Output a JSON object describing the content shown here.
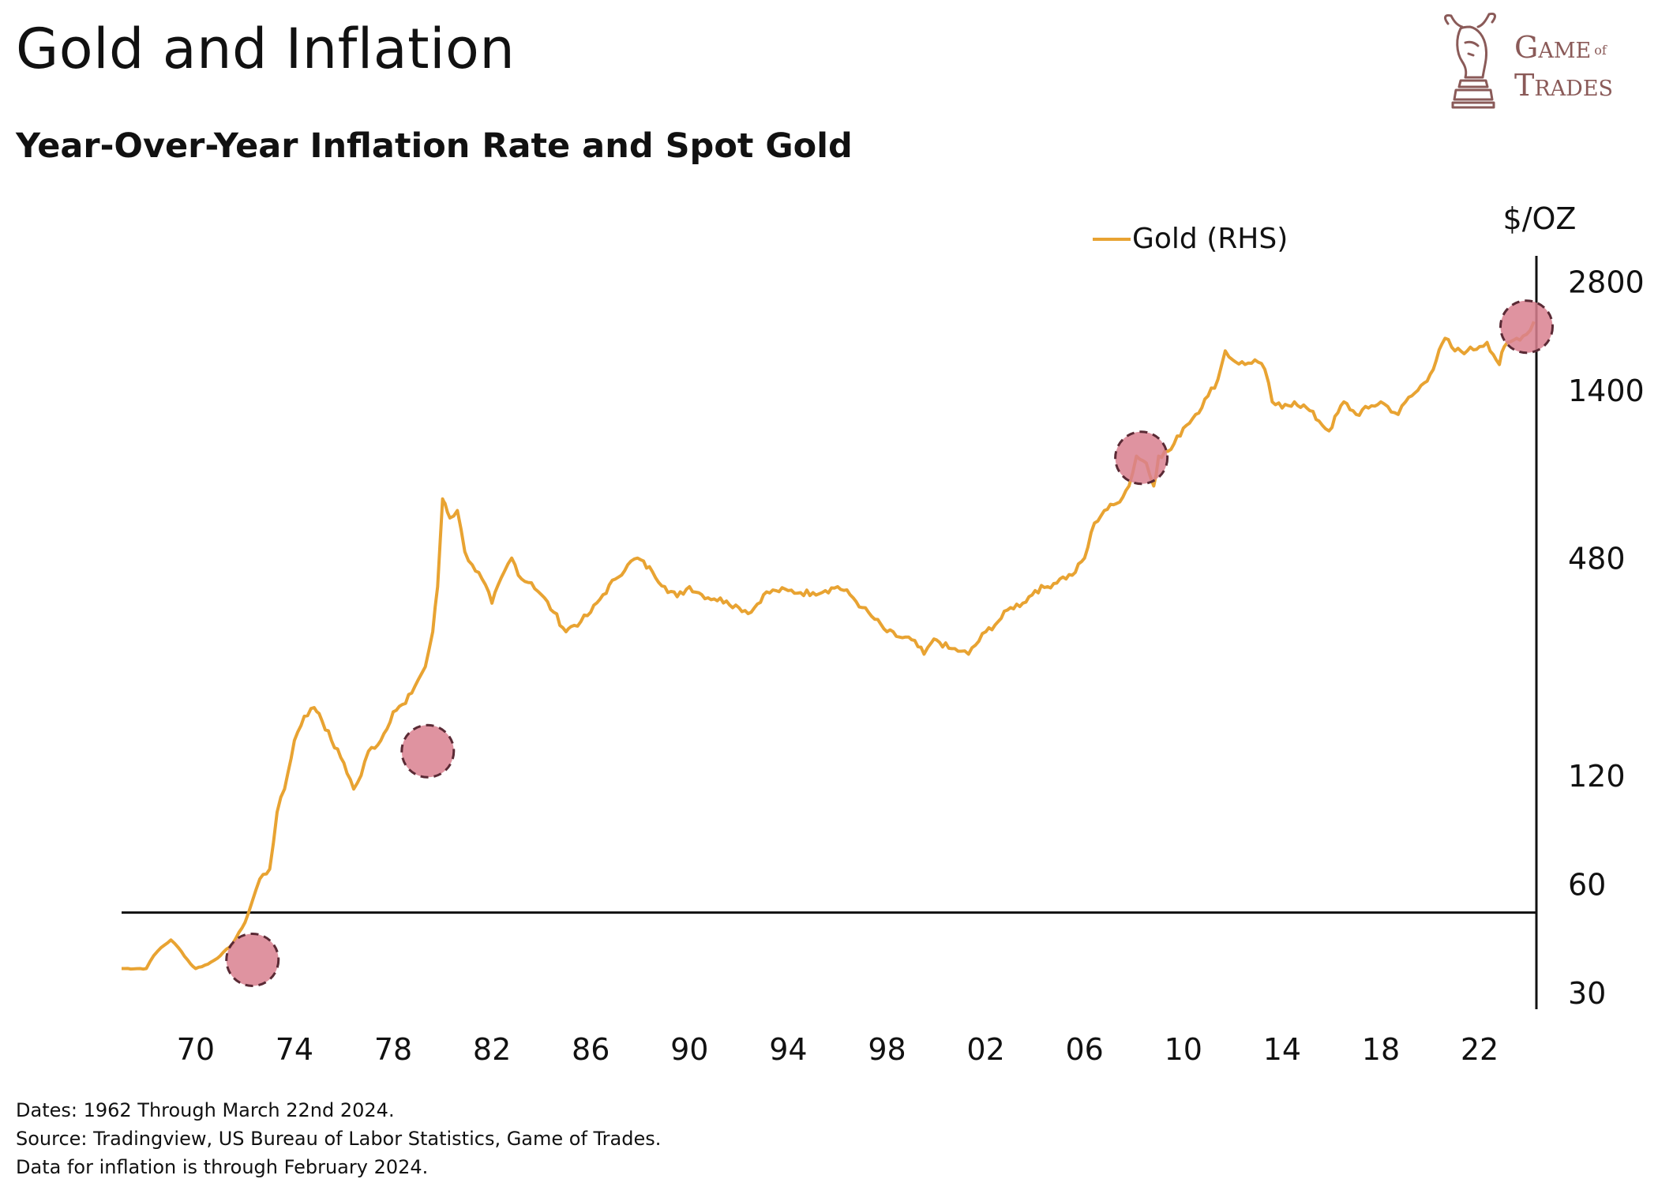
{
  "header": {
    "title": "Gold and Inflation",
    "subtitle": "Year-Over-Year Inflation Rate and Spot Gold"
  },
  "logo": {
    "line1": "Game",
    "line1_small": "of",
    "line2": "Trades",
    "icon": "bull-chess-knight-icon",
    "color": "#8a5a58"
  },
  "footer": {
    "dates": "Dates: 1962 Through March 22nd 2024.",
    "source": "Source: Tradingview, US Bureau of Labor Statistics, Game of Trades.",
    "note": "Data for inflation is through February 2024."
  },
  "chart_data": {
    "type": "line",
    "title": "Gold and Inflation",
    "subtitle": "Year-Over-Year Inflation Rate and Spot Gold",
    "y_unit_label": "$/OZ",
    "y_scale": "log",
    "y_ticks": [
      30,
      60,
      120,
      480,
      1400,
      2800
    ],
    "x_ticks": [
      "70",
      "74",
      "78",
      "82",
      "86",
      "90",
      "94",
      "98",
      "02",
      "06",
      "10",
      "14",
      "18",
      "22"
    ],
    "xlim": [
      1967,
      2024.3
    ],
    "ylim": [
      27,
      3300
    ],
    "legend": {
      "position": "top-right",
      "entries": [
        "Gold (RHS)"
      ]
    },
    "grid": false,
    "colors": {
      "gold": "#E8A332",
      "highlight_fill": "#D9808F",
      "highlight_stroke": "#5A2A35"
    },
    "series": [
      {
        "name": "Gold (RHS)",
        "x": [
          1967.0,
          1968.0,
          1968.3,
          1968.6,
          1969.0,
          1969.3,
          1969.8,
          1970.0,
          1970.5,
          1971.0,
          1971.5,
          1972.0,
          1972.3,
          1972.6,
          1973.0,
          1973.3,
          1973.6,
          1974.0,
          1974.4,
          1974.8,
          1975.0,
          1975.5,
          1976.0,
          1976.4,
          1976.7,
          1977.0,
          1977.5,
          1978.0,
          1978.5,
          1979.0,
          1979.3,
          1979.6,
          1979.8,
          1980.0,
          1980.1,
          1980.3,
          1980.6,
          1980.9,
          1981.2,
          1981.6,
          1982.0,
          1982.5,
          1982.8,
          1983.2,
          1983.6,
          1984.0,
          1984.5,
          1985.0,
          1985.2,
          1985.6,
          1986.0,
          1986.5,
          1987.0,
          1987.5,
          1987.9,
          1988.5,
          1989.0,
          1989.5,
          1990.0,
          1990.5,
          1991.0,
          1991.5,
          1992.0,
          1992.5,
          1993.0,
          1993.5,
          1994.0,
          1994.5,
          1995.0,
          1995.5,
          1996.0,
          1996.5,
          1997.0,
          1997.5,
          1998.0,
          1998.5,
          1999.0,
          1999.5,
          1999.8,
          2000.0,
          2000.5,
          2001.0,
          2001.3,
          2002.0,
          2002.5,
          2003.0,
          2003.5,
          2004.0,
          2004.5,
          2005.0,
          2005.5,
          2006.0,
          2006.4,
          2006.8,
          2007.3,
          2007.8,
          2008.1,
          2008.5,
          2008.8,
          2009.0,
          2009.5,
          2010.0,
          2010.5,
          2011.0,
          2011.4,
          2011.7,
          2012.0,
          2012.5,
          2012.9,
          2013.3,
          2013.6,
          2014.0,
          2014.5,
          2015.0,
          2015.5,
          2015.9,
          2016.5,
          2017.0,
          2017.5,
          2018.0,
          2018.7,
          2019.0,
          2019.5,
          2020.0,
          2020.6,
          2021.0,
          2021.5,
          2022.0,
          2022.3,
          2022.8,
          2023.0,
          2023.5,
          2023.9,
          2024.2
        ],
        "y": [
          35,
          35,
          38,
          40,
          42,
          40,
          36,
          35,
          36,
          38,
          41,
          47,
          54,
          62,
          66,
          95,
          110,
          150,
          175,
          185,
          178,
          150,
          130,
          110,
          120,
          140,
          150,
          180,
          190,
          220,
          240,
          300,
          400,
          700,
          680,
          620,
          650,
          500,
          460,
          420,
          360,
          440,
          480,
          420,
          410,
          380,
          340,
          300,
          310,
          320,
          340,
          380,
          420,
          460,
          480,
          440,
          400,
          375,
          400,
          380,
          370,
          365,
          350,
          340,
          380,
          390,
          390,
          385,
          385,
          390,
          400,
          380,
          350,
          325,
          300,
          290,
          285,
          260,
          280,
          285,
          270,
          265,
          260,
          300,
          320,
          350,
          360,
          390,
          400,
          420,
          430,
          480,
          600,
          650,
          680,
          760,
          920,
          880,
          760,
          920,
          960,
          1100,
          1200,
          1350,
          1500,
          1800,
          1700,
          1650,
          1700,
          1600,
          1300,
          1250,
          1300,
          1250,
          1150,
          1080,
          1300,
          1200,
          1250,
          1300,
          1200,
          1300,
          1400,
          1550,
          1950,
          1800,
          1800,
          1850,
          1900,
          1650,
          1850,
          1950,
          2000,
          2170
        ]
      }
    ],
    "reference_line": {
      "y": 50
    },
    "highlights": [
      {
        "x": 1972.3,
        "y": 37
      },
      {
        "x": 1979.4,
        "y": 140
      },
      {
        "x": 2008.3,
        "y": 910
      },
      {
        "x": 2023.9,
        "y": 2100
      }
    ]
  }
}
